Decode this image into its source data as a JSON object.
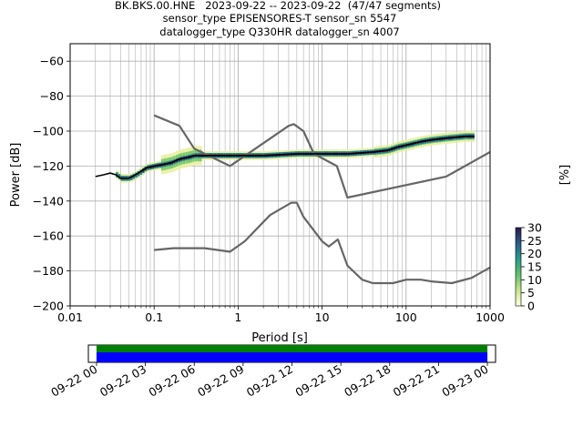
{
  "chart_data": {
    "type": "line",
    "title_lines": [
      "BK.BKS.00.HNE   2023-09-22 -- 2023-09-22  (47/47 segments)",
      "sensor_type EPISENSORES-T sensor_sn 5547",
      "datalogger_type Q330HR datalogger_sn 4007"
    ],
    "xlabel": "Period [s]",
    "ylabel": "Power [dB]",
    "x_scale": "log",
    "xlim": [
      0.01,
      1000
    ],
    "ylim": [
      -200,
      -50
    ],
    "x_ticks": [
      {
        "value": 0.01,
        "label": "0.01"
      },
      {
        "value": 0.1,
        "label": "0.1"
      },
      {
        "value": 1,
        "label": "1"
      },
      {
        "value": 10,
        "label": "10"
      },
      {
        "value": 100,
        "label": "100"
      },
      {
        "value": 1000,
        "label": "1000"
      }
    ],
    "y_ticks": [
      {
        "value": -200,
        "label": "−200"
      },
      {
        "value": -180,
        "label": "−180"
      },
      {
        "value": -160,
        "label": "−160"
      },
      {
        "value": -140,
        "label": "−140"
      },
      {
        "value": -120,
        "label": "−120"
      },
      {
        "value": -100,
        "label": "−100"
      },
      {
        "value": -80,
        "label": "−80"
      },
      {
        "value": -60,
        "label": "−60"
      }
    ],
    "grid": true,
    "colors": {
      "noise_model": "#666666",
      "mode": "#000000",
      "pdf_low": "#e8f0a0",
      "pdf_mid": "#7ecb6e",
      "pdf_high": "#2a7d8c",
      "pdf_peak": "#2a1b4a",
      "coverage_data": "#0000ff",
      "coverage_gap_free": "#008000"
    },
    "noise_models": [
      {
        "points": [
          [
            0.1,
            -91
          ],
          [
            0.2,
            -97
          ],
          [
            0.3,
            -110
          ],
          [
            0.8,
            -120
          ],
          [
            4.0,
            -97
          ],
          [
            4.6,
            -96
          ],
          [
            6.0,
            -100
          ],
          [
            8.0,
            -113
          ],
          [
            15.0,
            -120
          ],
          [
            20.0,
            -138
          ],
          [
            300.0,
            -126
          ],
          [
            1000.0,
            -112
          ]
        ]
      },
      {
        "points": [
          [
            0.1,
            -168
          ],
          [
            0.17,
            -167
          ],
          [
            0.4,
            -167
          ],
          [
            0.8,
            -169
          ],
          [
            1.2,
            -163
          ],
          [
            2.4,
            -148
          ],
          [
            4.3,
            -141
          ],
          [
            5.0,
            -141
          ],
          [
            6.0,
            -149
          ],
          [
            10.0,
            -163
          ],
          [
            12.0,
            -166
          ],
          [
            15.4,
            -162
          ],
          [
            20.0,
            -177
          ],
          [
            30.0,
            -185
          ],
          [
            40.0,
            -187
          ],
          [
            70.0,
            -187
          ],
          [
            100.0,
            -185
          ],
          [
            150.0,
            -185
          ],
          [
            200.0,
            -186
          ],
          [
            350.0,
            -187
          ],
          [
            600.0,
            -184
          ],
          [
            1000.0,
            -178
          ]
        ]
      }
    ],
    "mode_line": {
      "points": [
        [
          0.02,
          -126
        ],
        [
          0.025,
          -125
        ],
        [
          0.03,
          -124
        ],
        [
          0.035,
          -125
        ],
        [
          0.04,
          -127
        ],
        [
          0.05,
          -127
        ],
        [
          0.06,
          -125
        ],
        [
          0.07,
          -123
        ],
        [
          0.08,
          -121
        ],
        [
          0.1,
          -120
        ],
        [
          0.13,
          -119
        ],
        [
          0.16,
          -118
        ],
        [
          0.2,
          -116
        ],
        [
          0.25,
          -115
        ],
        [
          0.3,
          -114
        ],
        [
          0.5,
          -114
        ],
        [
          1.0,
          -114
        ],
        [
          2.0,
          -114
        ],
        [
          5.0,
          -113
        ],
        [
          10.0,
          -113
        ],
        [
          20.0,
          -113
        ],
        [
          40.0,
          -112
        ],
        [
          60.0,
          -111
        ],
        [
          80.0,
          -109
        ],
        [
          100.0,
          -108
        ],
        [
          150.0,
          -106
        ],
        [
          200.0,
          -105
        ],
        [
          300.0,
          -104
        ],
        [
          500.0,
          -103
        ],
        [
          650.0,
          -103
        ]
      ]
    },
    "colorbar": {
      "label": "[%]",
      "range": [
        0,
        30
      ],
      "ticks": [
        {
          "value": 0,
          "label": "0"
        },
        {
          "value": 5,
          "label": "5"
        },
        {
          "value": 10,
          "label": "10"
        },
        {
          "value": 15,
          "label": "15"
        },
        {
          "value": 20,
          "label": "20"
        },
        {
          "value": 25,
          "label": "25"
        },
        {
          "value": 30,
          "label": "30"
        }
      ]
    },
    "coverage": {
      "time_range_hours": [
        -0.5,
        24.5
      ],
      "data_span_hours": [
        0,
        24
      ],
      "tick_labels": [
        {
          "hour": 0,
          "label": "09-22 00"
        },
        {
          "hour": 3,
          "label": "09-22 03"
        },
        {
          "hour": 6,
          "label": "09-22 06"
        },
        {
          "hour": 9,
          "label": "09-22 09"
        },
        {
          "hour": 12,
          "label": "09-22 12"
        },
        {
          "hour": 15,
          "label": "09-22 15"
        },
        {
          "hour": 18,
          "label": "09-22 18"
        },
        {
          "hour": 21,
          "label": "09-22 21"
        },
        {
          "hour": 24,
          "label": "09-23 00"
        }
      ]
    }
  }
}
